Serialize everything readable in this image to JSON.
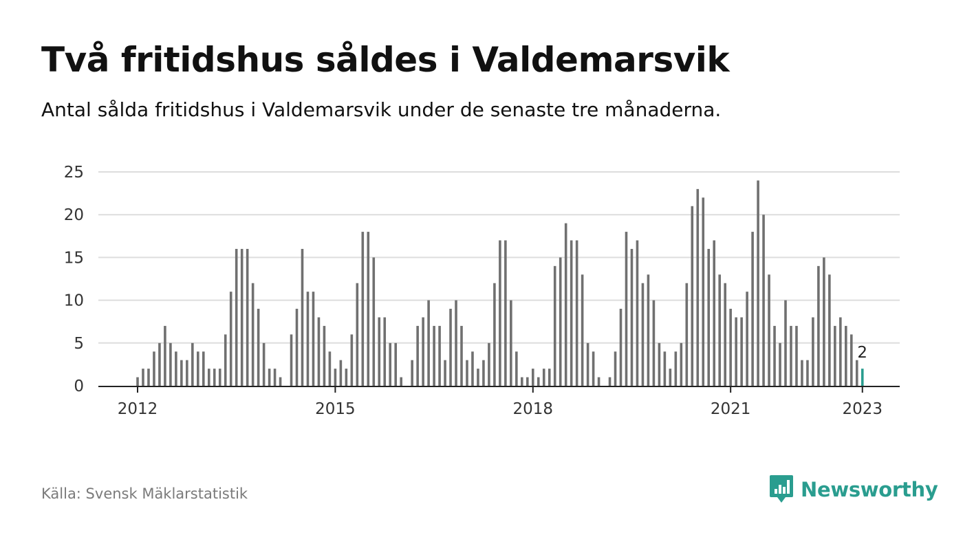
{
  "title": "Två fritidshus såldes i Valdemarsvik",
  "subtitle": "Antal sålda fritidshus i Valdemarsvik under de senaste tre månaderna.",
  "source": "Källa: Svensk Mäklarstatistik",
  "brand": {
    "name": "Newsworthy",
    "icon": "newsworthy-logo-icon"
  },
  "colors": {
    "bar": "#707070",
    "highlight": "#2a9d8f",
    "grid": "#dddddd",
    "brand": "#2a9d8f",
    "text": "#111111",
    "muted": "#7a7a7a"
  },
  "chart_data": {
    "type": "bar",
    "start": "2012-01",
    "frequency": "monthly",
    "values": [
      1,
      2,
      2,
      4,
      5,
      7,
      5,
      4,
      3,
      3,
      5,
      4,
      4,
      2,
      2,
      2,
      6,
      11,
      16,
      16,
      16,
      12,
      9,
      5,
      2,
      2,
      1,
      0,
      6,
      9,
      16,
      11,
      11,
      8,
      7,
      4,
      2,
      3,
      2,
      6,
      12,
      18,
      18,
      15,
      8,
      8,
      5,
      5,
      1,
      0,
      3,
      7,
      8,
      10,
      7,
      7,
      3,
      9,
      10,
      7,
      3,
      4,
      2,
      3,
      5,
      12,
      17,
      17,
      10,
      4,
      1,
      1,
      2,
      1,
      2,
      2,
      14,
      15,
      19,
      17,
      17,
      13,
      5,
      4,
      1,
      0,
      1,
      4,
      9,
      18,
      16,
      17,
      12,
      13,
      10,
      5,
      4,
      2,
      4,
      5,
      12,
      21,
      23,
      22,
      16,
      17,
      13,
      12,
      9,
      8,
      8,
      11,
      18,
      24,
      20,
      13,
      7,
      5,
      10,
      7,
      7,
      3,
      3,
      8,
      14,
      15,
      13,
      7,
      8,
      7,
      6,
      3,
      2
    ],
    "highlight_last": true,
    "value_label": "2",
    "xticks": [
      "2012",
      "2015",
      "2018",
      "2021",
      "2023"
    ],
    "yticks": [
      "0",
      "5",
      "10",
      "15",
      "20",
      "25"
    ],
    "ylim": [
      0,
      25
    ],
    "grid": true
  }
}
